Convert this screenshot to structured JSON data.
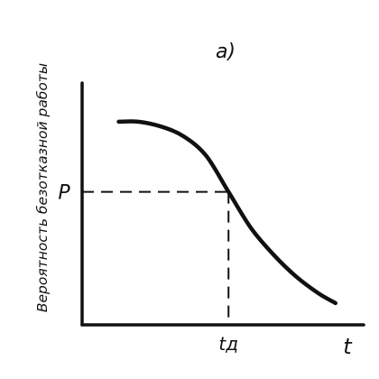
{
  "chart_data": {
    "type": "line",
    "panel_label": "a)",
    "ylabel": "Вероятность безотказной работы",
    "xlabel": "t",
    "y_marker": {
      "label": "P",
      "value": 0.55
    },
    "x_marker": {
      "label": "tд",
      "value": 0.52
    },
    "xlim": [
      0,
      1
    ],
    "ylim": [
      0,
      1
    ],
    "grid": false,
    "series": [
      {
        "x": [
          0.13,
          0.2,
          0.28,
          0.36,
          0.44,
          0.52,
          0.6,
          0.68,
          0.76,
          0.84,
          0.9
        ],
        "values": [
          0.84,
          0.84,
          0.82,
          0.78,
          0.7,
          0.55,
          0.4,
          0.29,
          0.2,
          0.13,
          0.09
        ]
      }
    ],
    "colors": {
      "ink": "#111111",
      "background": "#ffffff"
    }
  }
}
